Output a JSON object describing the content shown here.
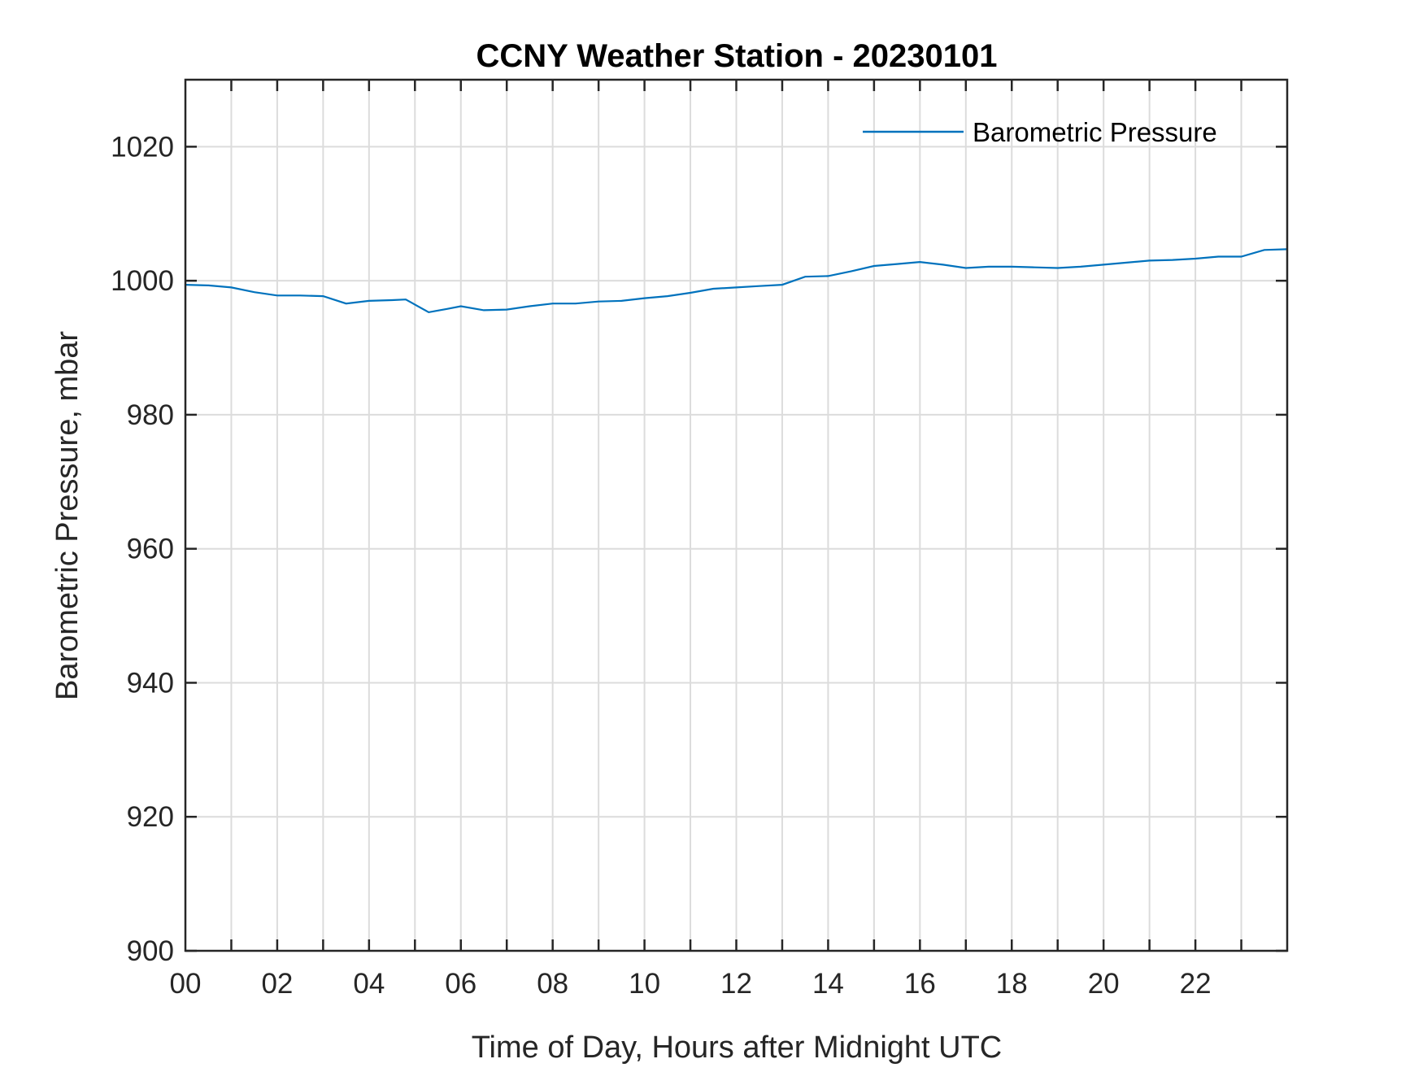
{
  "chart_data": {
    "type": "line",
    "title": "CCNY Weather Station - 20230101",
    "xlabel": "Time of Day, Hours after Midnight UTC",
    "ylabel": "Barometric Pressure, mbar",
    "xlim": [
      0,
      24
    ],
    "ylim": [
      900,
      1030
    ],
    "x_ticks": [
      "00",
      "02",
      "04",
      "06",
      "08",
      "10",
      "12",
      "14",
      "16",
      "18",
      "20",
      "22"
    ],
    "x_tick_values": [
      0,
      2,
      4,
      6,
      8,
      10,
      12,
      14,
      16,
      18,
      20,
      22
    ],
    "y_ticks": [
      900,
      920,
      940,
      960,
      980,
      1000,
      1020
    ],
    "grid": true,
    "legend_position": "top-right",
    "series": [
      {
        "name": "Barometric Pressure",
        "color": "#0072BD",
        "x": [
          0,
          0.5,
          1,
          1.5,
          2,
          2.5,
          3,
          3.5,
          4,
          4.5,
          4.8,
          5.3,
          5.7,
          6,
          6.5,
          7,
          7.5,
          8,
          8.5,
          9,
          9.5,
          10,
          10.5,
          11,
          11.5,
          12,
          12.5,
          13,
          13.5,
          14,
          14.5,
          15,
          15.5,
          16,
          16.5,
          17,
          17.5,
          18,
          18.5,
          19,
          19.5,
          20,
          20.5,
          21,
          21.5,
          22,
          22.5,
          23,
          23.5,
          24
        ],
        "y": [
          999.4,
          999.3,
          999.0,
          998.3,
          997.8,
          997.8,
          997.7,
          996.6,
          997.0,
          997.1,
          997.2,
          995.3,
          995.8,
          996.2,
          995.6,
          995.7,
          996.2,
          996.6,
          996.6,
          996.9,
          997.0,
          997.4,
          997.7,
          998.2,
          998.8,
          999.0,
          999.2,
          999.4,
          1000.6,
          1000.7,
          1001.4,
          1002.2,
          1002.5,
          1002.8,
          1002.4,
          1001.9,
          1002.1,
          1002.1,
          1002.0,
          1001.9,
          1002.1,
          1002.4,
          1002.7,
          1003.0,
          1003.1,
          1003.3,
          1003.6,
          1003.6,
          1004.6,
          1004.7
        ]
      }
    ]
  }
}
